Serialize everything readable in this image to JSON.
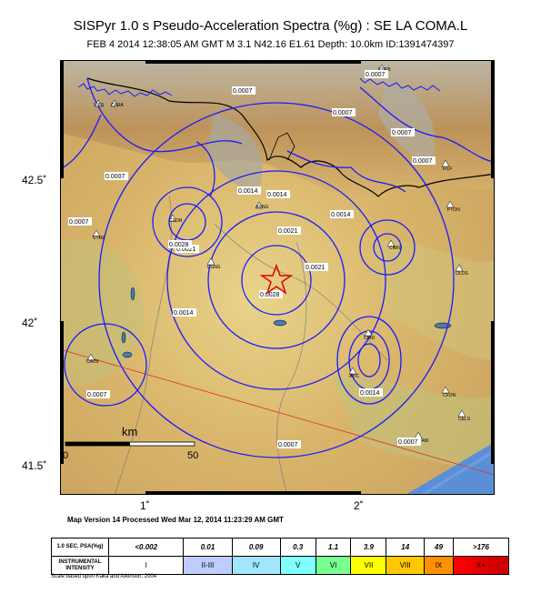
{
  "title": "SISPyr 1.0 s Pseudo-Acceleration Spectra (%g) : SE LA COMA.L",
  "subtitle": "FEB 4 2014 12:38:05 AM GMT   M 3.1   N42.16 E1.61   Depth: 10.0km   ID:1391474397",
  "axes": {
    "lat_ticks": [
      "42.5˚",
      "42˚",
      "41.5˚"
    ],
    "lon_ticks": [
      "1˚",
      "2˚"
    ]
  },
  "scale_bar": {
    "unit": "km",
    "start": "0",
    "end": "50"
  },
  "contour_labels": [
    "0.0007",
    "0.0014",
    "0.0021",
    "0.0028"
  ],
  "stations": [
    "VIES",
    "CARA",
    "CSOR",
    "CTRE",
    "CBRU",
    "OLOS",
    "CBRI",
    "CAVN",
    "CFON",
    "CELS",
    "GRAM",
    "PTON",
    "FILF",
    "ENEB",
    "CSNG",
    "ARNG",
    "AYIC"
  ],
  "epicenter_icon": "star-icon",
  "processed": "Map Version 14 Processed Wed Mar 12, 2014 11:23:29 AM GMT",
  "legend": {
    "row1_header": "1.0 SEC. PSA(%g)",
    "row2_header": "INSTRUMENTAL INTENSITY",
    "values": [
      "<0.002",
      "0.01",
      "0.09",
      "0.3",
      "1.1",
      "3.9",
      "14",
      "49",
      ">176"
    ],
    "intensities": [
      "I",
      "II-III",
      "IV",
      "V",
      "VI",
      "VII",
      "VIII",
      "IX",
      "X+"
    ],
    "colors": [
      "#ffffff",
      "#bfccff",
      "#a0e6ff",
      "#80ffff",
      "#7aff93",
      "#ffff00",
      "#ffc800",
      "#ff9100",
      "#ff0000",
      "#c80000"
    ]
  },
  "scale_note": "Scale based upon Kaka and Atkinson, 2004"
}
